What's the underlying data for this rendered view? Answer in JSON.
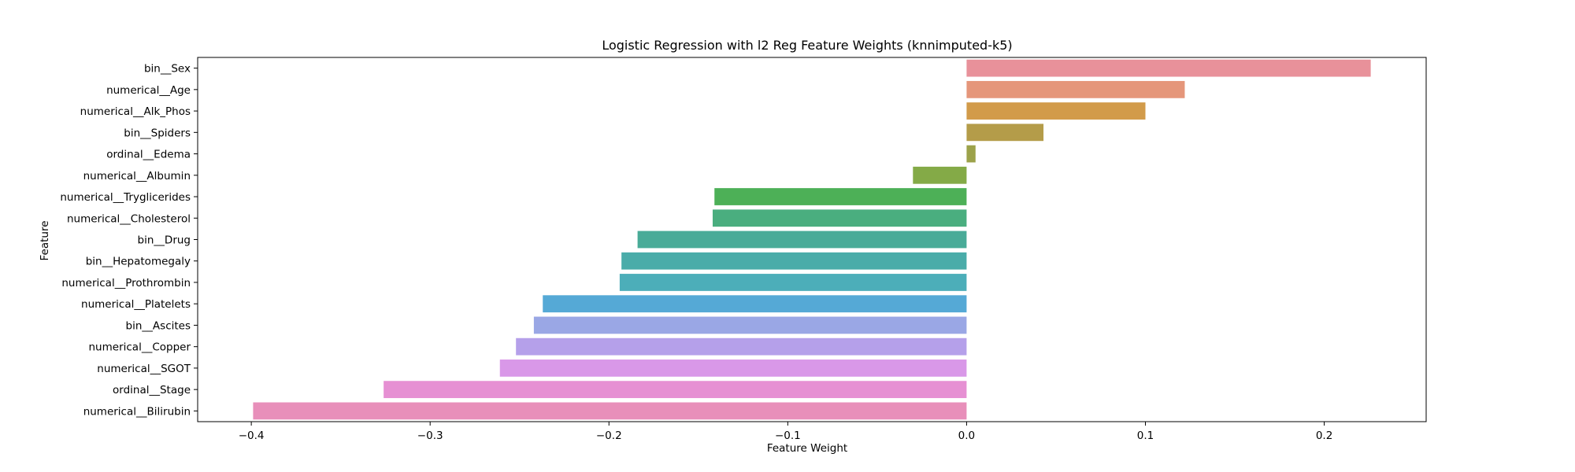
{
  "chart_data": {
    "type": "bar",
    "orientation": "horizontal",
    "title": "Logistic Regression with l2 Reg Feature Weights (knnimputed-k5)",
    "xlabel": "Feature Weight",
    "ylabel": "Feature",
    "xlim": [
      -0.43,
      0.257
    ],
    "xticks": [
      -0.4,
      -0.3,
      -0.2,
      -0.1,
      0.0,
      0.1,
      0.2
    ],
    "xtick_labels": [
      "−0.4",
      "−0.3",
      "−0.2",
      "−0.1",
      "0.0",
      "0.1",
      "0.2"
    ],
    "grid": false,
    "categories": [
      "bin__Sex",
      "numerical__Age",
      "numerical__Alk_Phos",
      "bin__Spiders",
      "ordinal__Edema",
      "numerical__Albumin",
      "numerical__Tryglicerides",
      "numerical__Cholesterol",
      "bin__Drug",
      "bin__Hepatomegaly",
      "numerical__Prothrombin",
      "numerical__Platelets",
      "bin__Ascites",
      "numerical__Copper",
      "numerical__SGOT",
      "ordinal__Stage",
      "numerical__Bilirubin"
    ],
    "values": [
      0.226,
      0.122,
      0.1,
      0.043,
      0.005,
      -0.03,
      -0.141,
      -0.142,
      -0.184,
      -0.193,
      -0.194,
      -0.237,
      -0.242,
      -0.252,
      -0.261,
      -0.326,
      -0.399
    ],
    "colors": [
      "#e8919a",
      "#e5967a",
      "#d29b4a",
      "#b49c49",
      "#9ca24a",
      "#84aa47",
      "#4db057",
      "#4aae7f",
      "#49ab98",
      "#4aaca9",
      "#4caeb9",
      "#55a9d6",
      "#9aa7e5",
      "#b5a0ea",
      "#d998e8",
      "#e690d3",
      "#e88fba"
    ]
  }
}
